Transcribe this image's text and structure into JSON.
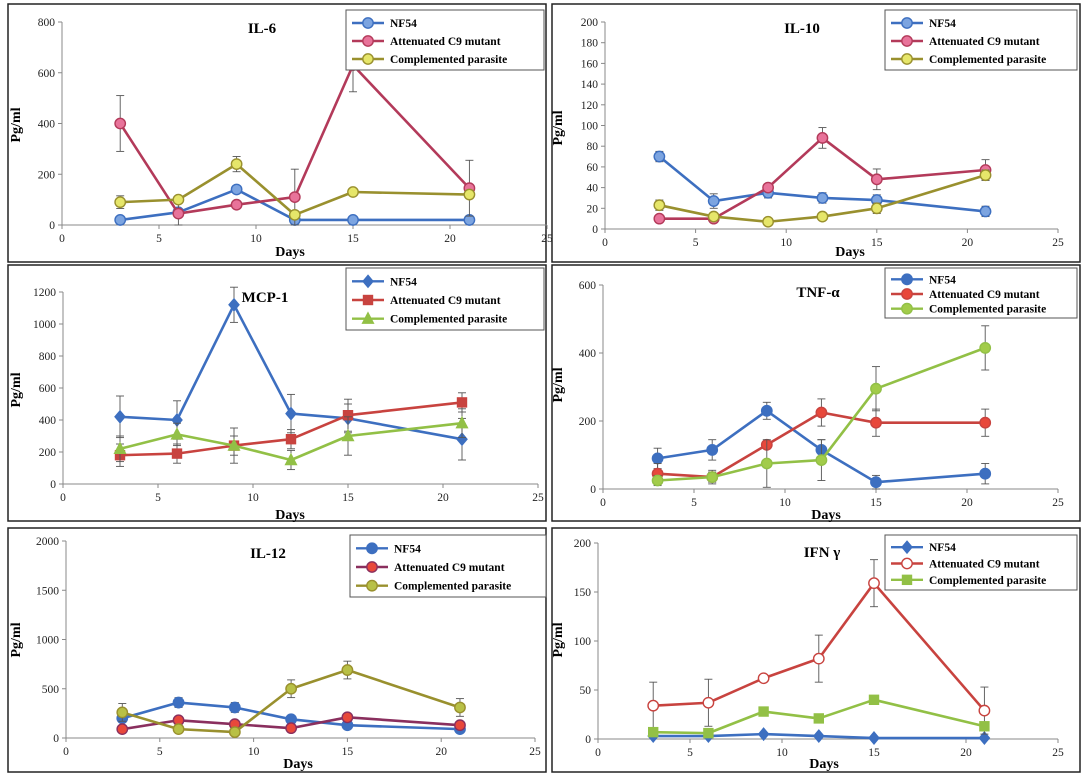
{
  "colors": {
    "nf54_blue": "#3D6FC0",
    "attenuated_red": "#C8433F",
    "complemented_green": "#92C046",
    "attenuated_magenta": "#B33A5A",
    "complemented_olive": "#99902E",
    "fill_blue": "#7CA4E0",
    "fill_pink": "#E8739A",
    "fill_yellow": "#E6E66A",
    "fill_red": "#E8483B",
    "fill_green": "#A2CC4A",
    "fill_olive": "#B8C046"
  },
  "chart_data": [
    {
      "type": "line",
      "title": "IL-6",
      "xlabel": "Days",
      "ylabel": "Pg/ml",
      "xlim": [
        0,
        25
      ],
      "ylim": [
        0,
        800
      ],
      "xticks": [
        0,
        5,
        10,
        15,
        20,
        25
      ],
      "yticks": [
        0,
        200,
        400,
        600,
        800
      ],
      "series": [
        {
          "name": "NF54",
          "line_color": "#3D6FC0",
          "marker_fill": "#7CA4E0",
          "marker": "circle",
          "x": [
            3,
            6,
            9,
            12,
            15,
            21
          ],
          "values": [
            20,
            50,
            140,
            20,
            20,
            20
          ],
          "errors": [
            0,
            0,
            10,
            0,
            0,
            0
          ]
        },
        {
          "name": "Attenuated C9 mutant",
          "line_color": "#B33A5A",
          "marker_fill": "#E8739A",
          "marker": "circle",
          "x": [
            3,
            6,
            9,
            12,
            15,
            21
          ],
          "values": [
            400,
            45,
            80,
            110,
            630,
            145
          ],
          "errors": [
            110,
            60,
            0,
            110,
            105,
            110
          ]
        },
        {
          "name": "Complemented parasite",
          "line_color": "#99902E",
          "marker_fill": "#E6E66A",
          "marker": "circle",
          "x": [
            3,
            6,
            9,
            12,
            15,
            21
          ],
          "values": [
            90,
            100,
            240,
            40,
            130,
            120
          ],
          "errors": [
            25,
            0,
            30,
            0,
            0,
            0
          ]
        }
      ]
    },
    {
      "type": "line",
      "title": "IL-10",
      "xlabel": "Days",
      "ylabel": "Pg/ml",
      "xlim": [
        0,
        25
      ],
      "ylim": [
        0,
        200
      ],
      "xticks": [
        0,
        5,
        10,
        15,
        20,
        25
      ],
      "yticks": [
        0,
        20,
        40,
        60,
        80,
        100,
        120,
        140,
        160,
        180,
        200
      ],
      "series": [
        {
          "name": "NF54",
          "line_color": "#3D6FC0",
          "marker_fill": "#7CA4E0",
          "marker": "circle",
          "x": [
            3,
            6,
            9,
            12,
            15,
            21
          ],
          "values": [
            70,
            27,
            35,
            30,
            28,
            17
          ],
          "errors": [
            5,
            7,
            5,
            5,
            5,
            5
          ]
        },
        {
          "name": "Attenuated C9 mutant",
          "line_color": "#B33A5A",
          "marker_fill": "#E8739A",
          "marker": "circle",
          "x": [
            3,
            6,
            9,
            12,
            15,
            21
          ],
          "values": [
            10,
            10,
            40,
            88,
            48,
            57
          ],
          "errors": [
            0,
            0,
            0,
            10,
            10,
            10
          ]
        },
        {
          "name": "Complemented parasite",
          "line_color": "#99902E",
          "marker_fill": "#E6E66A",
          "marker": "circle",
          "x": [
            3,
            6,
            9,
            12,
            15,
            21
          ],
          "values": [
            23,
            12,
            7,
            12,
            20,
            52
          ],
          "errors": [
            5,
            3,
            3,
            3,
            5,
            5
          ]
        }
      ]
    },
    {
      "type": "line",
      "title": "MCP-1",
      "xlabel": "Days",
      "ylabel": "Pg/ml",
      "xlim": [
        0,
        25
      ],
      "ylim": [
        0,
        1200
      ],
      "xticks": [
        0,
        5,
        10,
        15,
        20,
        25
      ],
      "yticks": [
        0,
        200,
        400,
        600,
        800,
        1000,
        1200
      ],
      "series": [
        {
          "name": "NF54",
          "line_color": "#3D6FC0",
          "marker_fill": "#3D6FC0",
          "marker": "diamond",
          "x": [
            3,
            6,
            9,
            12,
            15,
            21
          ],
          "values": [
            420,
            400,
            1120,
            440,
            410,
            280
          ],
          "errors": [
            130,
            120,
            110,
            120,
            90,
            130
          ]
        },
        {
          "name": "Attenuated C9 mutant",
          "line_color": "#C8433F",
          "marker_fill": "#C8433F",
          "marker": "square",
          "x": [
            3,
            6,
            9,
            12,
            15,
            21
          ],
          "values": [
            180,
            190,
            240,
            280,
            430,
            510
          ],
          "errors": [
            70,
            60,
            60,
            60,
            100,
            60
          ]
        },
        {
          "name": "Complemented parasite",
          "line_color": "#92C046",
          "marker_fill": "#92C046",
          "marker": "triangle",
          "x": [
            3,
            6,
            9,
            12,
            15,
            21
          ],
          "values": [
            220,
            310,
            240,
            150,
            300,
            380
          ],
          "errors": [
            80,
            70,
            110,
            60,
            120,
            90
          ]
        }
      ]
    },
    {
      "type": "line",
      "title": "TNF-α",
      "xlabel": "Days",
      "ylabel": "Pg/ml",
      "xlim": [
        0,
        25
      ],
      "ylim": [
        0,
        600
      ],
      "xticks": [
        0,
        5,
        10,
        15,
        20,
        25
      ],
      "yticks": [
        0,
        200,
        400,
        600
      ],
      "series": [
        {
          "name": "NF54",
          "line_color": "#3D6FC0",
          "marker_fill": "#3D6FC0",
          "marker": "circle",
          "x": [
            3,
            6,
            9,
            12,
            15,
            21
          ],
          "values": [
            90,
            115,
            230,
            115,
            20,
            45
          ],
          "errors": [
            30,
            30,
            25,
            30,
            20,
            30
          ]
        },
        {
          "name": "Attenuated C9 mutant",
          "line_color": "#C8433F",
          "marker_fill": "#E8483B",
          "marker": "circle",
          "x": [
            3,
            6,
            9,
            12,
            15,
            21
          ],
          "values": [
            45,
            35,
            130,
            225,
            195,
            195
          ],
          "errors": [
            30,
            20,
            0,
            40,
            40,
            40
          ]
        },
        {
          "name": "Complemented parasite",
          "line_color": "#92C046",
          "marker_fill": "#A2CC4A",
          "marker": "circle",
          "x": [
            3,
            6,
            9,
            12,
            15,
            21
          ],
          "values": [
            25,
            35,
            75,
            85,
            295,
            415
          ],
          "errors": [
            15,
            15,
            70,
            60,
            65,
            65
          ]
        }
      ]
    },
    {
      "type": "line",
      "title": "IL-12",
      "xlabel": "Days",
      "ylabel": "Pg/ml",
      "xlim": [
        0,
        25
      ],
      "ylim": [
        0,
        2000
      ],
      "xticks": [
        0,
        5,
        10,
        15,
        20,
        25
      ],
      "yticks": [
        0,
        500,
        1000,
        1500,
        2000
      ],
      "series": [
        {
          "name": "NF54",
          "line_color": "#3D6FC0",
          "marker_fill": "#3D6FC0",
          "marker": "circle",
          "x": [
            3,
            6,
            9,
            12,
            15,
            21
          ],
          "values": [
            200,
            360,
            310,
            190,
            130,
            90
          ],
          "errors": [
            30,
            50,
            50,
            40,
            30,
            20
          ]
        },
        {
          "name": "Attenuated C9 mutant",
          "line_color": "#8A2F5E",
          "marker_fill": "#E8483B",
          "marker": "circle",
          "x": [
            3,
            6,
            9,
            12,
            15,
            21
          ],
          "values": [
            90,
            180,
            140,
            100,
            210,
            130
          ],
          "errors": [
            30,
            40,
            30,
            30,
            40,
            30
          ]
        },
        {
          "name": "Complemented parasite",
          "line_color": "#99902E",
          "marker_fill": "#B8C046",
          "marker": "circle",
          "x": [
            3,
            6,
            9,
            12,
            15,
            21
          ],
          "values": [
            260,
            90,
            60,
            500,
            690,
            310
          ],
          "errors": [
            90,
            30,
            20,
            90,
            90,
            90
          ]
        }
      ]
    },
    {
      "type": "line",
      "title": "IFN γ",
      "xlabel": "Days",
      "ylabel": "Pg/ml",
      "xlim": [
        0,
        25
      ],
      "ylim": [
        0,
        200
      ],
      "xticks": [
        0,
        5,
        10,
        15,
        20,
        25
      ],
      "yticks": [
        0,
        50,
        100,
        150,
        200
      ],
      "series": [
        {
          "name": "NF54",
          "line_color": "#3D6FC0",
          "marker_fill": "#3D6FC0",
          "marker": "diamond",
          "x": [
            3,
            6,
            9,
            12,
            15,
            21
          ],
          "values": [
            3,
            3,
            5,
            3,
            1,
            1
          ],
          "errors": [
            1,
            1,
            1,
            1,
            1,
            1
          ]
        },
        {
          "name": "Attenuated C9 mutant",
          "line_color": "#C8433F",
          "marker_fill": "#ffffff",
          "marker": "circle",
          "x": [
            3,
            6,
            9,
            12,
            15,
            21
          ],
          "values": [
            34,
            37,
            62,
            82,
            159,
            29
          ],
          "errors": [
            24,
            24,
            0,
            24,
            24,
            24
          ]
        },
        {
          "name": "Complemented parasite",
          "line_color": "#92C046",
          "marker_fill": "#92C046",
          "marker": "square",
          "x": [
            3,
            6,
            9,
            12,
            15,
            21
          ],
          "values": [
            7,
            6,
            28,
            21,
            40,
            13
          ],
          "errors": [
            3,
            3,
            4,
            4,
            4,
            4
          ]
        }
      ]
    }
  ]
}
